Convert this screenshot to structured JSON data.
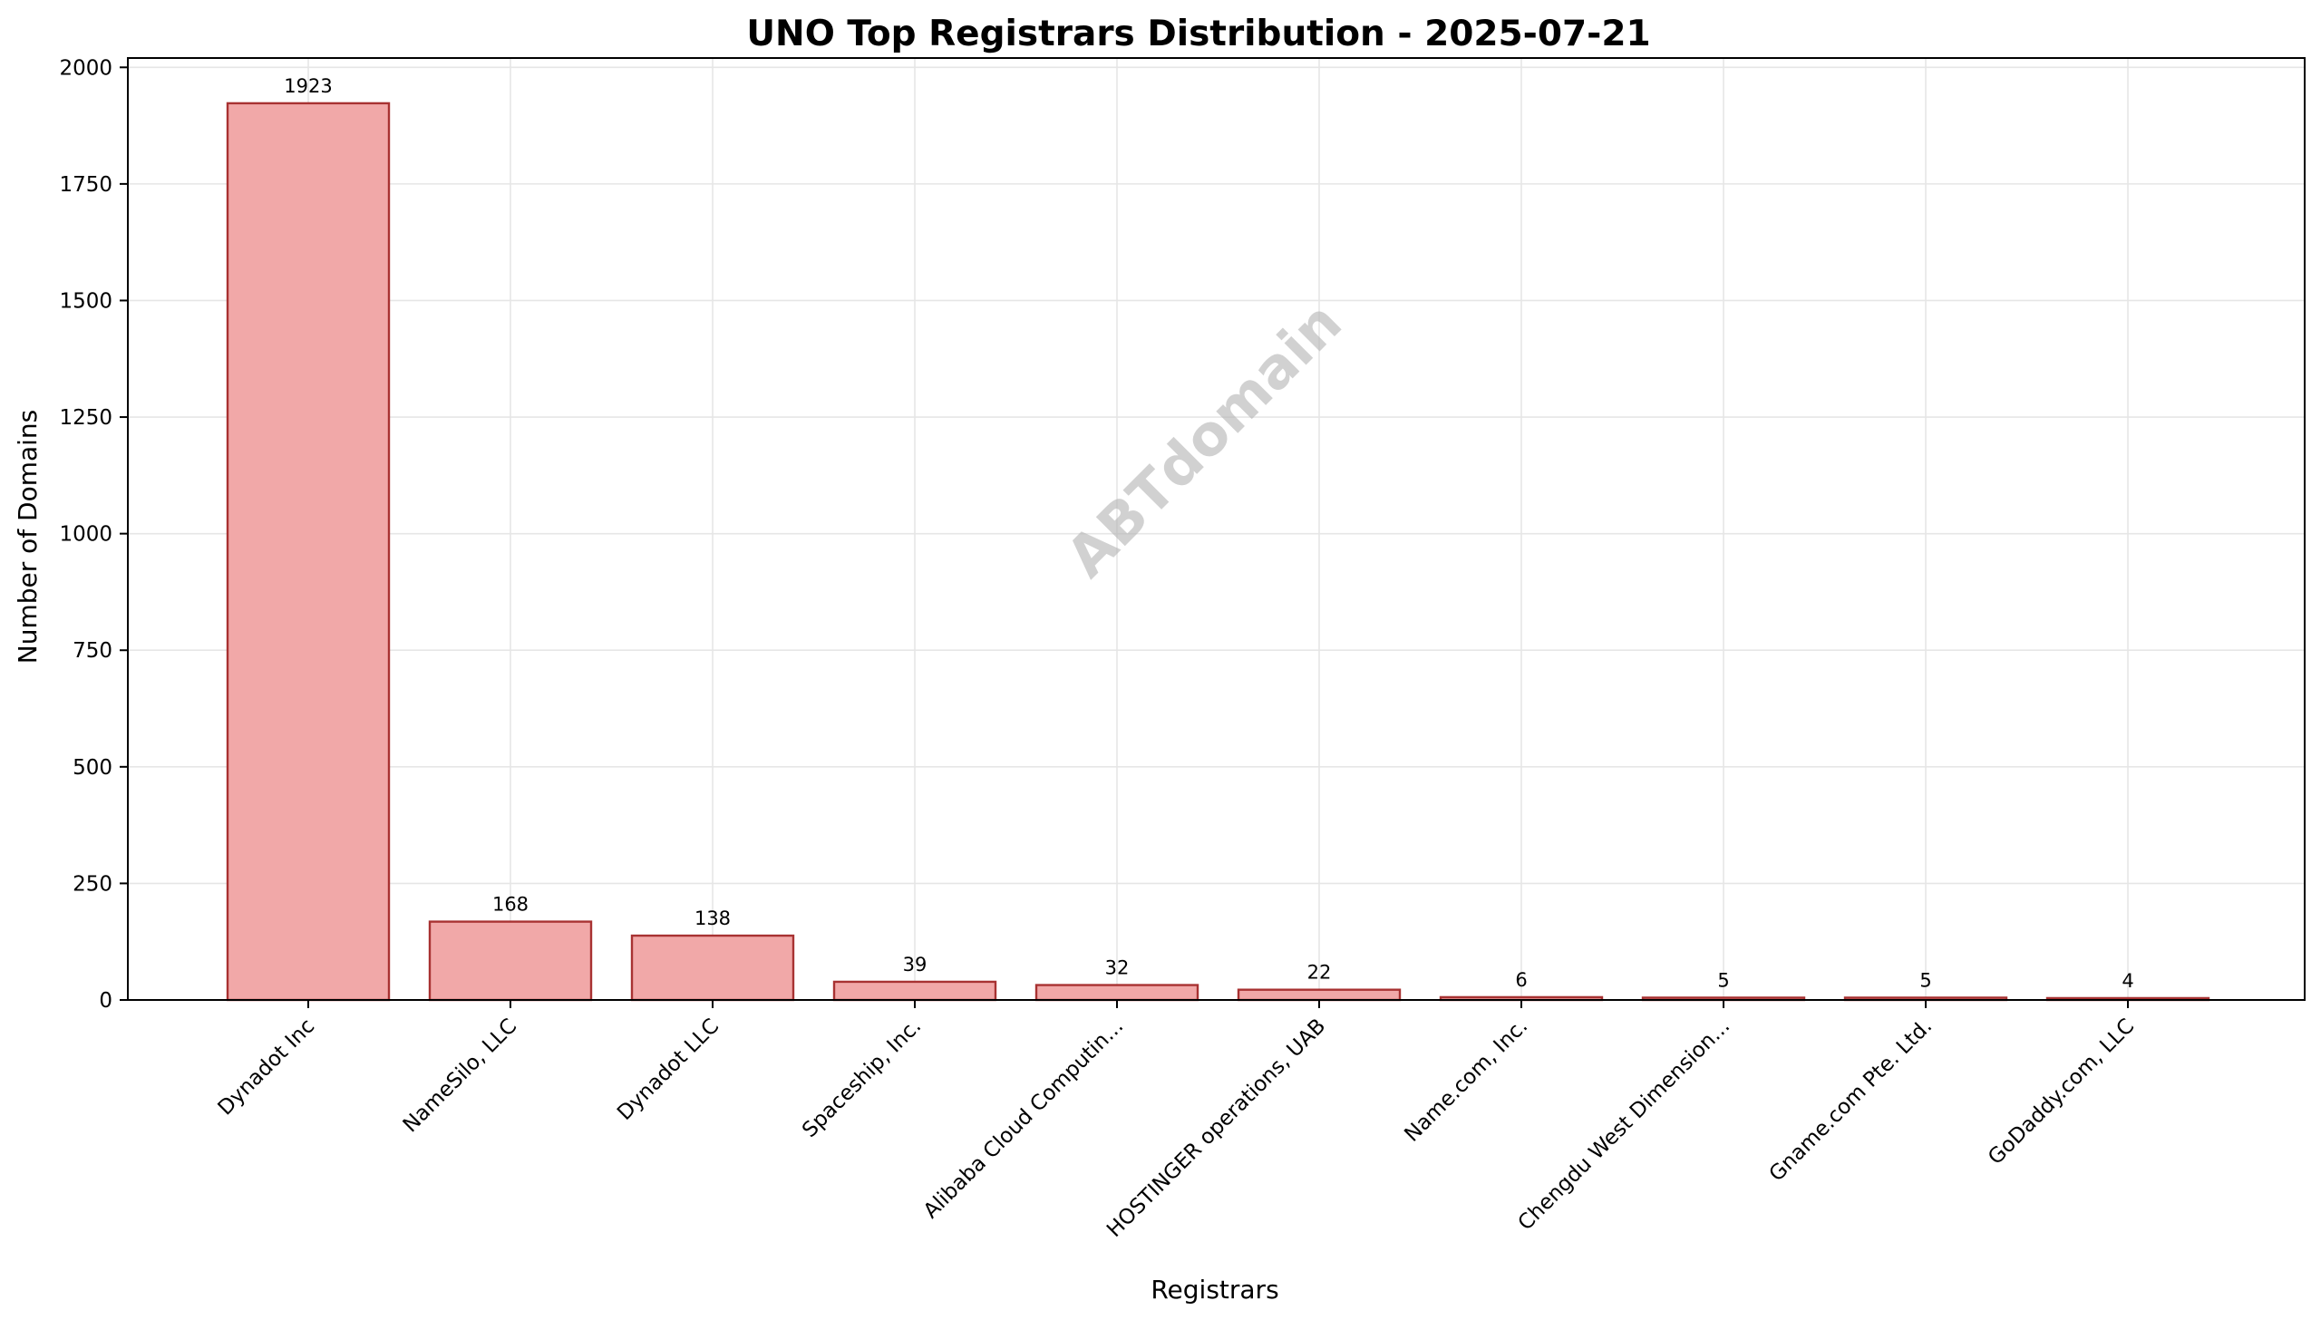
{
  "chart_data": {
    "type": "bar",
    "title": "UNO Top Registrars Distribution - 2025-07-21",
    "xlabel": "Registrars",
    "ylabel": "Number of Domains",
    "categories": [
      "Dynadot Inc",
      "NameSilo, LLC",
      "Dynadot LLC",
      "Spaceship, Inc.",
      "Alibaba Cloud Computin...",
      "HOSTINGER operations, UAB",
      "Name.com, Inc.",
      "Chengdu West Dimension...",
      "Gname.com Pte. Ltd.",
      "GoDaddy.com, LLC"
    ],
    "values": [
      1923,
      168,
      138,
      39,
      32,
      22,
      6,
      5,
      5,
      4
    ],
    "ylim": [
      0,
      2020
    ],
    "yticks": [
      0,
      250,
      500,
      750,
      1000,
      1250,
      1500,
      1750,
      2000
    ],
    "grid": true,
    "bar_color": "#f1a8a8",
    "edge_color": "#a83232",
    "watermark": "ABTdomain"
  }
}
